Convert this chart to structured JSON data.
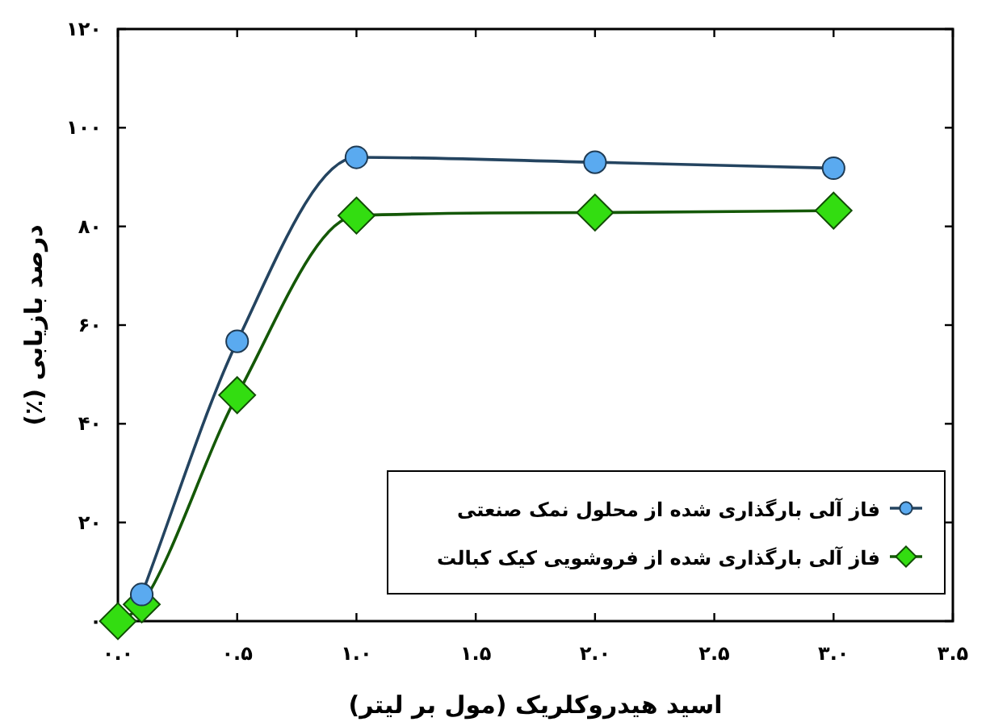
{
  "chart_data": {
    "type": "line",
    "xlabel": "اسید هیدروکلریک (مول بر لیتر)",
    "ylabel": "درصد بازیابی (٪)",
    "xlim": [
      0,
      3.5
    ],
    "ylim": [
      0,
      120
    ],
    "xticks": [
      {
        "value": 0,
        "label": "۰.۰"
      },
      {
        "value": 0.5,
        "label": "۰.۵"
      },
      {
        "value": 1,
        "label": "۱.۰"
      },
      {
        "value": 1.5,
        "label": "۱.۵"
      },
      {
        "value": 2,
        "label": "۲.۰"
      },
      {
        "value": 2.5,
        "label": "۲.۵"
      },
      {
        "value": 3,
        "label": "۳.۰"
      },
      {
        "value": 3.5,
        "label": "۳.۵"
      }
    ],
    "yticks": [
      {
        "value": 0,
        "label": "۰"
      },
      {
        "value": 20,
        "label": "۲۰"
      },
      {
        "value": 40,
        "label": "۴۰"
      },
      {
        "value": 60,
        "label": "۶۰"
      },
      {
        "value": 80,
        "label": "۸۰"
      },
      {
        "value": 100,
        "label": "۱۰۰"
      },
      {
        "value": 120,
        "label": "۱۲۰"
      }
    ],
    "legend": "bottom right",
    "series": [
      {
        "name": "فاز آلی بارگذاری شده از محلول نمک صنعتی",
        "color": "#5aaaf0",
        "marker": "circle",
        "x": [
          0.1,
          0.5,
          1.0,
          2.0,
          3.0
        ],
        "values": [
          5.4,
          56.7,
          94,
          93,
          91.8
        ]
      },
      {
        "name": "فاز آلی بارگذاری شده از فروشویی کیک کبالت",
        "color": "#33dd11",
        "marker": "diamond",
        "x": [
          0,
          0.1,
          0.5,
          1.0,
          2.0,
          3.0
        ],
        "values": [
          0,
          3.4,
          45.8,
          82.2,
          82.8,
          83.2
        ]
      }
    ]
  }
}
